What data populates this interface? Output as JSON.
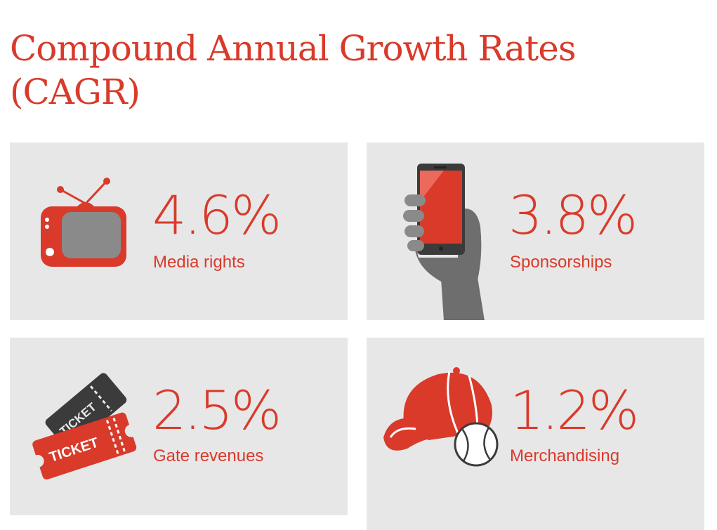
{
  "title": "Compound Annual Growth Rates (CAGR)",
  "colors": {
    "accent": "#d93a2a",
    "tile_background": "#e7e7e8",
    "icon_gray": "#6e6e6e",
    "icon_dark_gray": "#3b3b3b"
  },
  "chart_data": {
    "type": "table",
    "title": "Compound Annual Growth Rates (CAGR)",
    "unit": "%",
    "categories": [
      "Media rights",
      "Sponsorships",
      "Gate revenues",
      "Merchandising"
    ],
    "values": [
      4.6,
      3.8,
      2.5,
      1.2
    ],
    "items": [
      {
        "value_text": "4.6%",
        "label": "Media rights",
        "icon": "tv-icon"
      },
      {
        "value_text": "3.8%",
        "label": "Sponsorships",
        "icon": "smartphone-in-hand-icon"
      },
      {
        "value_text": "2.5%",
        "label": "Gate revenues",
        "icon": "tickets-icon"
      },
      {
        "value_text": "1.2%",
        "label": "Merchandising",
        "icon": "cap-and-ball-icon"
      }
    ]
  }
}
